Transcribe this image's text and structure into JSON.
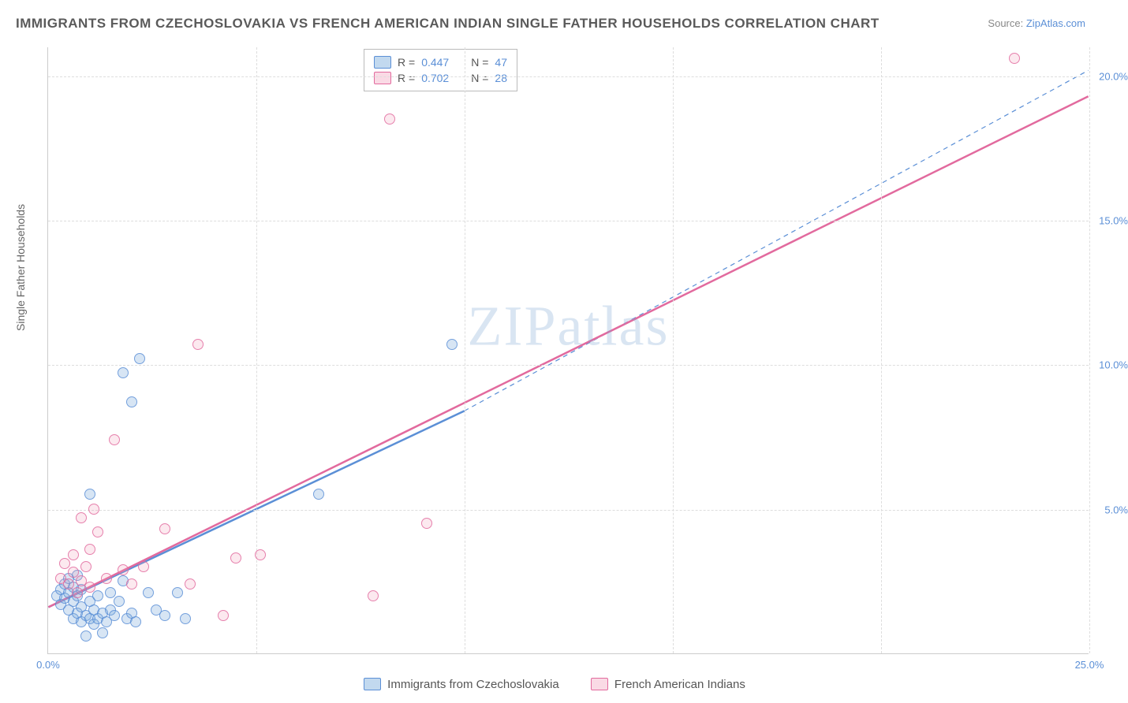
{
  "title": "IMMIGRANTS FROM CZECHOSLOVAKIA VS FRENCH AMERICAN INDIAN SINGLE FATHER HOUSEHOLDS CORRELATION CHART",
  "source_label": "Source:",
  "source_link": "ZipAtlas.com",
  "y_axis_label": "Single Father Households",
  "watermark": "ZIPatlas",
  "chart": {
    "type": "scatter",
    "xlim": [
      0,
      25
    ],
    "ylim": [
      0,
      21
    ],
    "x_ticks": [
      0,
      25
    ],
    "x_tick_labels": [
      "0.0%",
      "25.0%"
    ],
    "y_ticks": [
      5,
      10,
      15,
      20
    ],
    "y_tick_labels": [
      "5.0%",
      "10.0%",
      "15.0%",
      "20.0%"
    ],
    "x_grid_lines": [
      5,
      10,
      15,
      20,
      25
    ],
    "y_grid_lines": [
      5,
      10,
      15,
      20
    ],
    "background_color": "#ffffff",
    "grid_color": "#dddddd",
    "axis_color": "#cccccc",
    "tick_font_color": "#5b8fd6",
    "tick_font_size": 13,
    "marker_radius": 7,
    "series": [
      {
        "id": "blue",
        "name": "Immigrants from Czechoslovakia",
        "fill_color": "rgba(120,170,220,0.35)",
        "stroke_color": "#5b8fd6",
        "r_value": "0.447",
        "n_value": "47",
        "trend_solid": {
          "x1": 0,
          "y1": 1.6,
          "x2": 10,
          "y2": 8.4,
          "width": 2.5
        },
        "trend_dash": {
          "x1": 10,
          "y1": 8.4,
          "x2": 25,
          "y2": 20.2,
          "width": 1.2
        },
        "points": [
          [
            0.2,
            2.0
          ],
          [
            0.3,
            2.2
          ],
          [
            0.3,
            1.7
          ],
          [
            0.4,
            1.9
          ],
          [
            0.4,
            2.4
          ],
          [
            0.5,
            1.5
          ],
          [
            0.5,
            2.1
          ],
          [
            0.5,
            2.6
          ],
          [
            0.6,
            1.8
          ],
          [
            0.6,
            1.2
          ],
          [
            0.6,
            2.3
          ],
          [
            0.7,
            2.0
          ],
          [
            0.7,
            1.4
          ],
          [
            0.7,
            2.7
          ],
          [
            0.8,
            1.1
          ],
          [
            0.8,
            1.6
          ],
          [
            0.8,
            2.2
          ],
          [
            0.9,
            1.3
          ],
          [
            0.9,
            0.6
          ],
          [
            1.0,
            1.2
          ],
          [
            1.0,
            1.8
          ],
          [
            1.0,
            5.5
          ],
          [
            1.1,
            1.0
          ],
          [
            1.1,
            1.5
          ],
          [
            1.2,
            2.0
          ],
          [
            1.2,
            1.2
          ],
          [
            1.3,
            1.4
          ],
          [
            1.3,
            0.7
          ],
          [
            1.4,
            1.1
          ],
          [
            1.5,
            1.5
          ],
          [
            1.5,
            2.1
          ],
          [
            1.6,
            1.3
          ],
          [
            1.7,
            1.8
          ],
          [
            1.8,
            2.5
          ],
          [
            1.8,
            9.7
          ],
          [
            1.9,
            1.2
          ],
          [
            2.0,
            8.7
          ],
          [
            2.0,
            1.4
          ],
          [
            2.1,
            1.1
          ],
          [
            2.2,
            10.2
          ],
          [
            2.4,
            2.1
          ],
          [
            2.6,
            1.5
          ],
          [
            2.8,
            1.3
          ],
          [
            3.1,
            2.1
          ],
          [
            3.3,
            1.2
          ],
          [
            6.5,
            5.5
          ],
          [
            9.7,
            10.7
          ]
        ]
      },
      {
        "id": "pink",
        "name": "French American Indians",
        "fill_color": "rgba(240,150,180,0.25)",
        "stroke_color": "#e26a9e",
        "r_value": "0.702",
        "n_value": "28",
        "trend_solid": {
          "x1": 0,
          "y1": 1.6,
          "x2": 25,
          "y2": 19.3,
          "width": 2.5
        },
        "trend_dash": null,
        "points": [
          [
            0.3,
            2.6
          ],
          [
            0.4,
            3.1
          ],
          [
            0.5,
            2.4
          ],
          [
            0.6,
            2.8
          ],
          [
            0.6,
            3.4
          ],
          [
            0.7,
            2.1
          ],
          [
            0.8,
            2.5
          ],
          [
            0.8,
            4.7
          ],
          [
            0.9,
            3.0
          ],
          [
            1.0,
            2.3
          ],
          [
            1.0,
            3.6
          ],
          [
            1.1,
            5.0
          ],
          [
            1.2,
            4.2
          ],
          [
            1.4,
            2.6
          ],
          [
            1.6,
            7.4
          ],
          [
            1.8,
            2.9
          ],
          [
            2.0,
            2.4
          ],
          [
            2.3,
            3.0
          ],
          [
            2.8,
            4.3
          ],
          [
            3.4,
            2.4
          ],
          [
            3.6,
            10.7
          ],
          [
            4.2,
            1.3
          ],
          [
            4.5,
            3.3
          ],
          [
            5.1,
            3.4
          ],
          [
            7.8,
            2.0
          ],
          [
            8.2,
            18.5
          ],
          [
            9.1,
            4.5
          ],
          [
            23.2,
            20.6
          ]
        ]
      }
    ],
    "legend_box": {
      "r_label": "R =",
      "n_label": "N ="
    },
    "bottom_legend": true
  }
}
